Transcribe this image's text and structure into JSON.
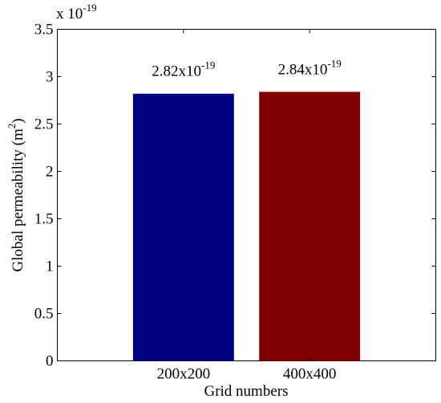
{
  "chart_data": {
    "type": "bar",
    "categories": [
      "200x200",
      "400x400"
    ],
    "values": [
      2.82,
      2.84
    ],
    "scale_label": {
      "base": "x 10",
      "exponent": "-19"
    },
    "data_labels": [
      {
        "mantissa": "2.82x10",
        "exponent": "-19"
      },
      {
        "mantissa": "2.84x10",
        "exponent": "-19"
      }
    ],
    "xlabel": "Grid numbers",
    "ylabel": {
      "main": "Global permeability (m",
      "exponent": "2",
      "close": ")"
    },
    "ylim": [
      0,
      3.5
    ],
    "yticks": [
      0,
      0.5,
      1,
      1.5,
      2,
      2.5,
      3,
      3.5
    ],
    "ytick_labels": [
      "0",
      "0.5",
      "1",
      "1.5",
      "2",
      "2.5",
      "3",
      "3.5"
    ],
    "bar_colors": [
      "#000080",
      "#800000"
    ],
    "grid": false,
    "legend": "none"
  }
}
